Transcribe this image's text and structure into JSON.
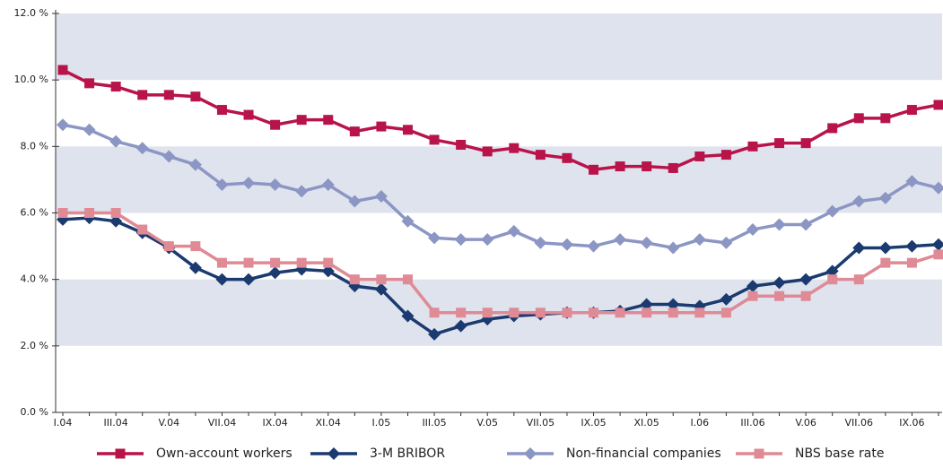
{
  "chart_data": {
    "type": "line",
    "categories": [
      "I.04",
      null,
      "III.04",
      null,
      "V.04",
      null,
      "VII.04",
      null,
      "IX.04",
      null,
      "XI.04",
      null,
      "I.05",
      null,
      "III.05",
      null,
      "V.05",
      null,
      "VII.05",
      null,
      "IX.05",
      null,
      "XI.05",
      null,
      "I.06",
      null,
      "III.06",
      null,
      "V.06",
      null,
      "VII.06",
      null,
      "IX.06",
      null
    ],
    "ylim": [
      0,
      12
    ],
    "yticks": [
      {
        "value": 0,
        "label": "0.0 %"
      },
      {
        "value": 2,
        "label": "2.0 %"
      },
      {
        "value": 4,
        "label": "4.0 %"
      },
      {
        "value": 6,
        "label": "6.0 %"
      },
      {
        "value": 8,
        "label": "8.0 %"
      },
      {
        "value": 10,
        "label": "10.0 %"
      },
      {
        "value": 12,
        "label": "12.0 %"
      }
    ],
    "grid_bands": true,
    "series": [
      {
        "name": "Own-account workers",
        "color": "#b8144a",
        "marker": "square",
        "values": [
          10.3,
          9.9,
          9.8,
          9.55,
          9.55,
          9.5,
          9.1,
          8.95,
          8.65,
          8.8,
          8.8,
          8.45,
          8.6,
          8.5,
          8.2,
          8.05,
          7.85,
          7.95,
          7.75,
          7.65,
          7.3,
          7.4,
          7.4,
          7.35,
          7.7,
          7.75,
          8.0,
          8.1,
          8.1,
          8.55,
          8.85,
          8.85,
          9.1,
          9.25
        ]
      },
      {
        "name": "3-M BRIBOR",
        "color": "#1b3a6f",
        "marker": "diamond",
        "values": [
          5.8,
          5.85,
          5.75,
          5.4,
          4.95,
          4.35,
          4.0,
          4.0,
          4.2,
          4.3,
          4.25,
          3.8,
          3.7,
          2.9,
          2.35,
          2.6,
          2.8,
          2.9,
          2.95,
          3.0,
          3.0,
          3.05,
          3.25,
          3.25,
          3.2,
          3.4,
          3.8,
          3.9,
          4.0,
          4.25,
          4.95,
          4.95,
          5.0,
          5.05
        ]
      },
      {
        "name": "Non-financial companies",
        "color": "#8c96c4",
        "marker": "diamond",
        "values": [
          8.65,
          8.5,
          8.15,
          7.95,
          7.7,
          7.45,
          6.85,
          6.9,
          6.85,
          6.65,
          6.85,
          6.35,
          6.5,
          5.75,
          5.25,
          5.2,
          5.2,
          5.45,
          5.1,
          5.05,
          5.0,
          5.2,
          5.1,
          4.95,
          5.2,
          5.1,
          5.5,
          5.65,
          5.65,
          6.05,
          6.35,
          6.45,
          6.95,
          6.75
        ]
      },
      {
        "name": "NBS base rate",
        "color": "#df8a95",
        "marker": "square",
        "values": [
          6.0,
          6.0,
          6.0,
          5.5,
          5.0,
          5.0,
          4.5,
          4.5,
          4.5,
          4.5,
          4.5,
          4.0,
          4.0,
          4.0,
          3.0,
          3.0,
          3.0,
          3.0,
          3.0,
          3.0,
          3.0,
          3.0,
          3.0,
          3.0,
          3.0,
          3.0,
          3.5,
          3.5,
          3.5,
          4.0,
          4.0,
          4.5,
          4.5,
          4.75
        ]
      }
    ]
  }
}
